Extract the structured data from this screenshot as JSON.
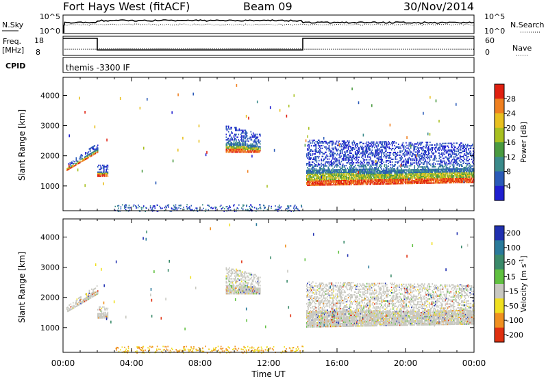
{
  "header": {
    "title": "Fort Hays West (fitACF)",
    "beam": "Beam 09",
    "date": "30/Nov/2014"
  },
  "panels": {
    "nsky_label": "N.Sky",
    "nsky_ticks": [
      "10^5",
      "10^0"
    ],
    "nsearch_label": "N.Search",
    "nsearch_ticks": [
      "10^5",
      "10^0"
    ],
    "freq_label_1": "Freq.",
    "freq_label_2": "[MHz]",
    "freq_ticks": [
      "18",
      "8"
    ],
    "nave_label": "Nave",
    "nave_ticks": [
      "60",
      "0"
    ],
    "cpid_label": "CPID",
    "cpid_text": "themis -3300 IF"
  },
  "chart_data": [
    {
      "type": "heatmap",
      "name": "power",
      "ylabel": "Slant Range [km]",
      "ylim": [
        180,
        4600
      ],
      "yticks": [
        1000,
        2000,
        3000,
        4000
      ],
      "xlabel": "Time UT",
      "xlim": [
        0,
        24
      ],
      "xticks": [
        "00:00",
        "04:00",
        "08:00",
        "12:00",
        "16:00",
        "20:00",
        "00:00"
      ],
      "colorbar": {
        "label": "Power [dB]",
        "ticks": [
          "4",
          "8",
          "12",
          "16",
          "20",
          "24",
          "28"
        ],
        "colors": [
          "#1f1fd0",
          "#2a5ab8",
          "#3a8a8a",
          "#4a9a40",
          "#a8c020",
          "#e8c020",
          "#f08020",
          "#e02010"
        ]
      },
      "regions": [
        {
          "t": [
            0.2,
            2.0
          ],
          "r0": [
            1500,
            2100
          ],
          "r1": [
            1700,
            2400
          ]
        },
        {
          "t": [
            2.0,
            2.6
          ],
          "r0": [
            1300,
            1300
          ],
          "r1": [
            1700,
            1700
          ]
        },
        {
          "t": [
            9.5,
            11.5
          ],
          "r0": [
            2100,
            2100
          ],
          "r1": [
            3000,
            2700
          ]
        },
        {
          "t": [
            14.2,
            24.0
          ],
          "r0": [
            1000,
            1100
          ],
          "r1": [
            2500,
            2400
          ]
        }
      ],
      "ground_band": {
        "t": [
          3.0,
          14.0
        ],
        "r": [
          180,
          400
        ]
      }
    },
    {
      "type": "heatmap",
      "name": "velocity",
      "ylabel": "Slant Range [km]",
      "ylim": [
        180,
        4600
      ],
      "yticks": [
        1000,
        2000,
        3000,
        4000
      ],
      "xlabel": "Time UT",
      "xlim": [
        0,
        24
      ],
      "xticks": [
        "00:00",
        "04:00",
        "08:00",
        "12:00",
        "16:00",
        "20:00",
        "00:00"
      ],
      "colorbar": {
        "label": "Velocity [m s^-1]",
        "ticks": [
          "200",
          "100",
          "50",
          "15",
          "-15",
          "-50",
          "-100",
          "-200"
        ],
        "colors": [
          "#2030b0",
          "#2a7a9a",
          "#3a8a6a",
          "#60c040",
          "#c8c8c0",
          "#f0e020",
          "#f09020",
          "#e03010"
        ]
      },
      "regions": [
        {
          "t": [
            0.2,
            2.0
          ],
          "r0": [
            1500,
            2100
          ],
          "r1": [
            1700,
            2400
          ]
        },
        {
          "t": [
            2.0,
            2.6
          ],
          "r0": [
            1300,
            1300
          ],
          "r1": [
            1700,
            1700
          ]
        },
        {
          "t": [
            9.5,
            11.5
          ],
          "r0": [
            2100,
            2100
          ],
          "r1": [
            3000,
            2700
          ]
        },
        {
          "t": [
            14.2,
            24.0
          ],
          "r0": [
            1000,
            1100
          ],
          "r1": [
            2500,
            2400
          ]
        }
      ],
      "ground_band": {
        "t": [
          3.0,
          14.0
        ],
        "r": [
          180,
          400
        ]
      }
    }
  ]
}
